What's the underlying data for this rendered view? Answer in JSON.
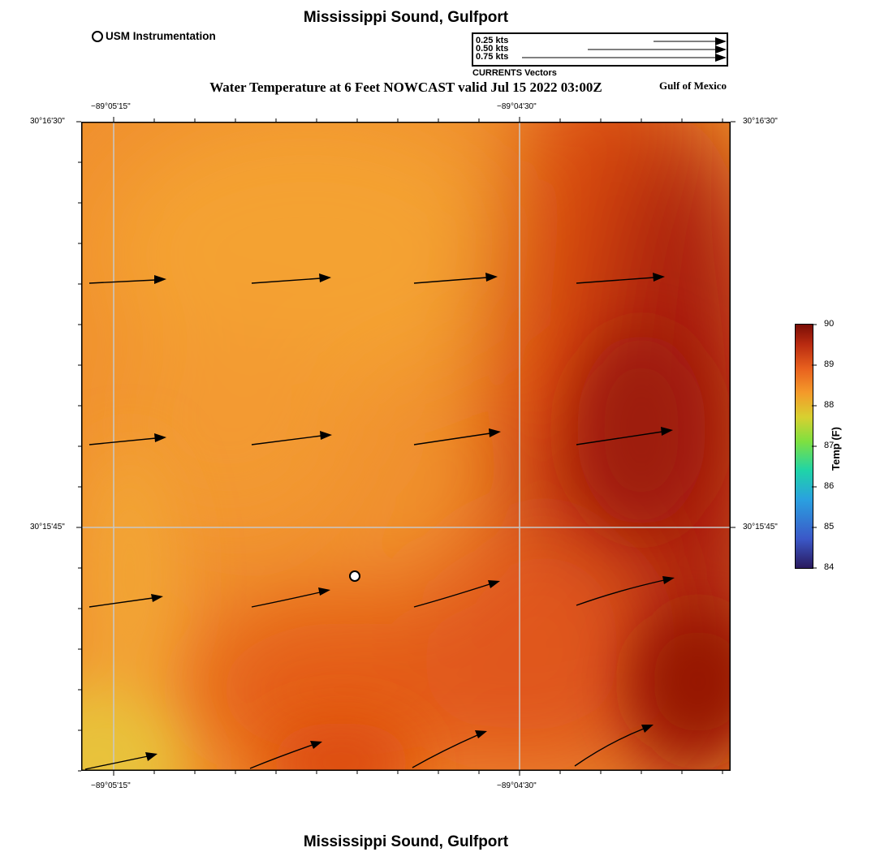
{
  "title": "Mississippi Sound, Gulfport",
  "subtitle": "Water Temperature at 6 Feet NOWCAST valid Jul 15 2022 03:00Z",
  "region_label": "Gulf of Mexico",
  "footer_title": "Mississippi Sound, Gulfport",
  "instrument_legend": {
    "label": "USM Instrumentation"
  },
  "vector_legend": {
    "entries": [
      "0.25 kts",
      "0.50 kts",
      "0.75 kts"
    ],
    "caption": "CURRENTS Vectors"
  },
  "axes": {
    "top_ticks": [
      "−89°05'15\"",
      "−89°04'30\""
    ],
    "bottom_ticks": [
      "−89°05'15\"",
      "−89°04'30\""
    ],
    "left_ticks": [
      "30°16'30\"",
      "30°15'45\""
    ],
    "right_ticks": [
      "30°16'30\"",
      "30°15'45\""
    ]
  },
  "colorbar": {
    "title": "Temp (F)",
    "min": 84,
    "max": 90,
    "ticks": [
      "90",
      "89",
      "88",
      "87",
      "86",
      "85",
      "84"
    ]
  },
  "colors": {
    "warm_orange": "#f2962e",
    "mid_orange": "#e4601a",
    "deep_red": "#9c1c08",
    "yellow": "#e8c23a"
  }
}
